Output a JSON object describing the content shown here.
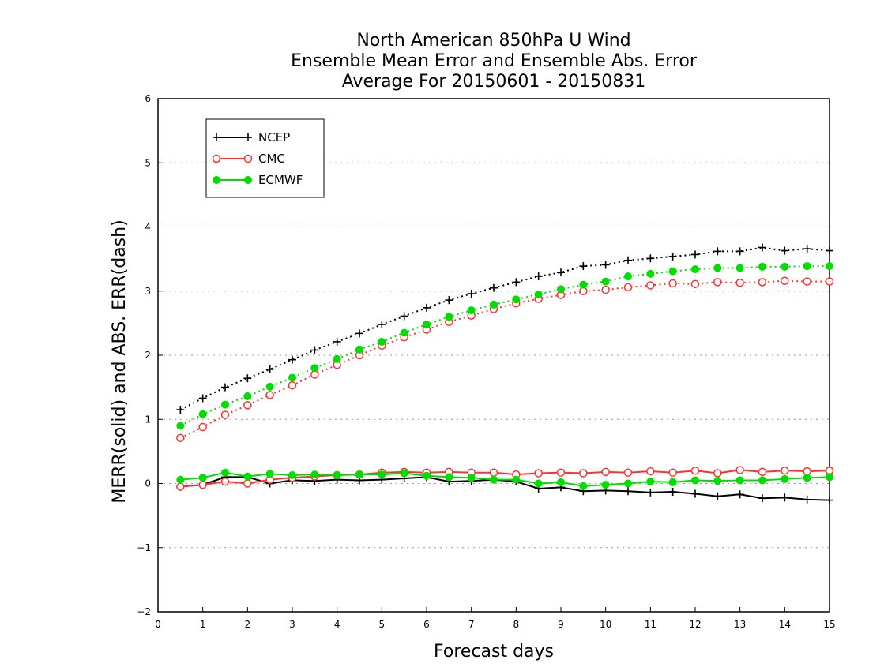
{
  "chart_data": {
    "type": "line",
    "title": [
      "North American 850hPa U Wind",
      "Ensemble Mean Error and Ensemble Abs. Error",
      "Average For 20150601 - 20150831"
    ],
    "xlabel": "Forecast days",
    "ylabel": "MERR(solid) and ABS. ERR(dash)",
    "xlim": [
      0,
      15
    ],
    "ylim": [
      -2,
      6
    ],
    "xticks": [
      0,
      1,
      2,
      3,
      4,
      5,
      6,
      7,
      8,
      9,
      10,
      11,
      12,
      13,
      14,
      15
    ],
    "yticks": [
      -2,
      -1,
      0,
      1,
      2,
      3,
      4,
      5,
      6
    ],
    "grid": "horizontal-dotted",
    "legend_position": "top-left",
    "x": [
      0.5,
      1,
      1.5,
      2,
      2.5,
      3,
      3.5,
      4,
      4.5,
      5,
      5.5,
      6,
      6.5,
      7,
      7.5,
      8,
      8.5,
      9,
      9.5,
      10,
      10.5,
      11,
      11.5,
      12,
      12.5,
      13,
      13.5,
      14,
      14.5,
      15
    ],
    "series": [
      {
        "name": "NCEP",
        "color": "#000000",
        "marker": "plus",
        "mean_error": [
          -0.05,
          -0.02,
          0.1,
          0.1,
          0.0,
          0.05,
          0.04,
          0.06,
          0.05,
          0.06,
          0.08,
          0.1,
          0.03,
          0.04,
          0.06,
          0.03,
          -0.08,
          -0.06,
          -0.12,
          -0.11,
          -0.12,
          -0.14,
          -0.13,
          -0.16,
          -0.2,
          -0.17,
          -0.23,
          -0.22,
          -0.25,
          -0.26
        ],
        "abs_error": [
          1.15,
          1.33,
          1.5,
          1.64,
          1.78,
          1.93,
          2.08,
          2.21,
          2.34,
          2.48,
          2.61,
          2.74,
          2.86,
          2.96,
          3.05,
          3.14,
          3.23,
          3.29,
          3.39,
          3.41,
          3.48,
          3.51,
          3.54,
          3.57,
          3.62,
          3.62,
          3.68,
          3.63,
          3.66,
          3.63
        ]
      },
      {
        "name": "CMC",
        "color": "#ff3030",
        "marker": "open-circle",
        "mean_error": [
          -0.05,
          -0.02,
          0.03,
          0.0,
          0.06,
          0.09,
          0.11,
          0.13,
          0.14,
          0.17,
          0.18,
          0.17,
          0.18,
          0.17,
          0.17,
          0.14,
          0.16,
          0.17,
          0.16,
          0.18,
          0.17,
          0.19,
          0.17,
          0.2,
          0.16,
          0.21,
          0.18,
          0.2,
          0.19,
          0.2
        ],
        "abs_error": [
          0.71,
          0.88,
          1.07,
          1.22,
          1.38,
          1.53,
          1.7,
          1.85,
          2.0,
          2.15,
          2.28,
          2.4,
          2.52,
          2.62,
          2.72,
          2.81,
          2.88,
          2.94,
          3.0,
          3.02,
          3.06,
          3.09,
          3.12,
          3.11,
          3.14,
          3.13,
          3.14,
          3.16,
          3.15,
          3.15
        ]
      },
      {
        "name": "ECMWF",
        "color": "#00dd00",
        "marker": "filled-circle",
        "mean_error": [
          0.06,
          0.09,
          0.17,
          0.11,
          0.15,
          0.13,
          0.14,
          0.13,
          0.14,
          0.14,
          0.16,
          0.12,
          0.1,
          0.09,
          0.06,
          0.06,
          0.0,
          0.02,
          -0.04,
          -0.02,
          0.0,
          0.03,
          0.02,
          0.05,
          0.04,
          0.05,
          0.05,
          0.07,
          0.09,
          0.1
        ],
        "abs_error": [
          0.9,
          1.08,
          1.23,
          1.36,
          1.51,
          1.65,
          1.8,
          1.94,
          2.09,
          2.21,
          2.35,
          2.48,
          2.6,
          2.7,
          2.79,
          2.87,
          2.95,
          3.03,
          3.1,
          3.15,
          3.23,
          3.27,
          3.31,
          3.34,
          3.36,
          3.36,
          3.38,
          3.38,
          3.39,
          3.39
        ]
      }
    ]
  }
}
